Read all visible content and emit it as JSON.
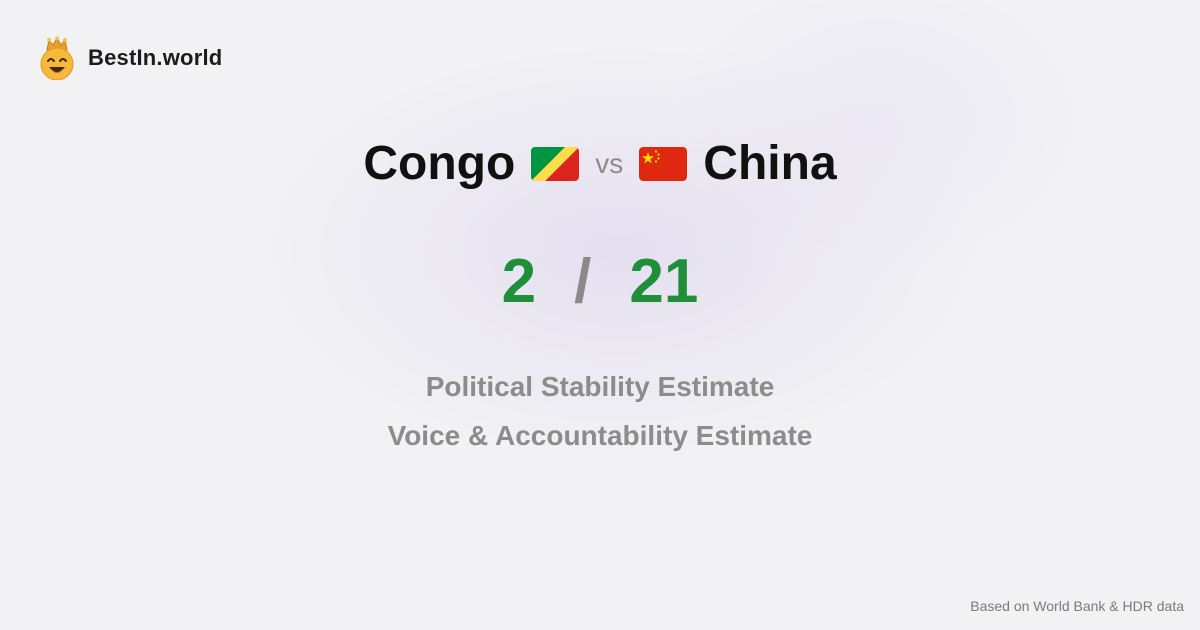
{
  "brand": {
    "name": "BestIn.world",
    "logo_icon": "crown-smiley-icon"
  },
  "comparison": {
    "left_country": "Congo",
    "left_flag_icon": "congo-flag-icon",
    "vs_label": "vs",
    "right_country": "China",
    "right_flag_icon": "china-flag-icon"
  },
  "scores": {
    "left": "2",
    "separator": "/",
    "right": "21"
  },
  "metrics": [
    "Political Stability Estimate",
    "Voice & Accountability Estimate"
  ],
  "footer": {
    "source_note": "Based on World Bank & HDR data"
  },
  "colors": {
    "score_green": "#1f8f3a",
    "muted_gray": "#8c8c8c",
    "background": "#f2f2f4"
  }
}
